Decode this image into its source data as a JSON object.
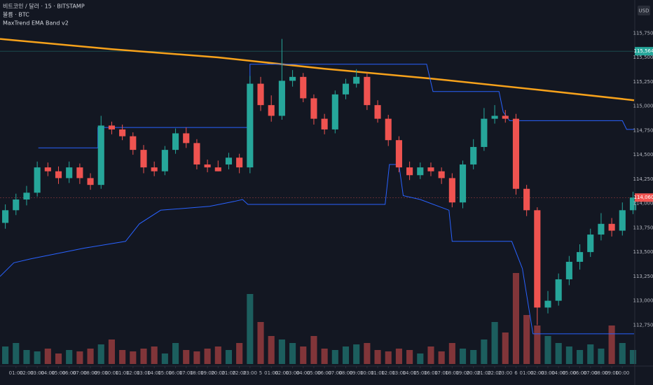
{
  "header": {
    "lines": [
      "비트코인 / 달러 · 15 · BITSTAMP",
      "볼륨 · BTC",
      "MaxTrend EMA Band v2"
    ],
    "currency": "USD"
  },
  "chart_data": {
    "type": "candlestick",
    "colors": {
      "up": "#26a69a",
      "down": "#ef5350"
    },
    "xlim": [
      -0.5,
      59.1
    ],
    "ylim": [
      112350,
      116090
    ],
    "x": [
      0,
      1,
      2,
      3,
      4,
      5,
      6,
      7,
      8,
      9,
      10,
      11,
      12,
      13,
      14,
      15,
      16,
      17,
      18,
      19,
      20,
      21,
      22,
      23,
      24,
      25,
      26,
      27,
      28,
      29,
      30,
      31,
      32,
      33,
      34,
      35,
      36,
      37,
      38,
      39,
      40,
      41,
      42,
      43,
      44,
      45,
      46,
      47,
      48,
      49,
      50,
      51,
      52,
      53,
      54,
      55,
      56,
      57,
      58,
      59
    ],
    "open": [
      113800,
      113930,
      114040,
      114110,
      114370,
      114330,
      114260,
      114370,
      114260,
      114190,
      114800,
      114760,
      114690,
      114550,
      114370,
      114330,
      114550,
      114720,
      114620,
      114400,
      114370,
      114400,
      114470,
      114370,
      115230,
      115010,
      114900,
      115260,
      115300,
      115080,
      114870,
      114760,
      115120,
      115230,
      115300,
      115010,
      114870,
      114650,
      114370,
      114290,
      114370,
      114330,
      114260,
      114010,
      114400,
      114580,
      114870,
      114900,
      114870,
      114150,
      113930,
      112930,
      113000,
      113220,
      113400,
      113500,
      113680,
      113790,
      113720,
      113930
    ],
    "high": [
      113990,
      114100,
      114180,
      114430,
      114420,
      114380,
      114430,
      114410,
      114310,
      114900,
      114840,
      114810,
      114730,
      114600,
      114430,
      114590,
      114770,
      114780,
      114660,
      114450,
      114440,
      114520,
      114510,
      115310,
      115300,
      115110,
      115690,
      115370,
      115340,
      115120,
      114920,
      115160,
      115280,
      115380,
      115340,
      115060,
      114910,
      114690,
      114430,
      114420,
      114420,
      114370,
      114310,
      114440,
      114660,
      114980,
      115010,
      114960,
      114920,
      114190,
      113960,
      113100,
      113280,
      113460,
      113580,
      113740,
      113900,
      113850,
      114010,
      114120
    ],
    "low": [
      113740,
      113880,
      113980,
      114070,
      114280,
      114200,
      114210,
      114200,
      114140,
      114150,
      114710,
      114650,
      114500,
      114310,
      114280,
      114290,
      114510,
      114570,
      114350,
      114320,
      114330,
      114350,
      114310,
      114310,
      114950,
      114840,
      114860,
      115200,
      115040,
      114810,
      114710,
      114720,
      115070,
      115190,
      114960,
      114830,
      114590,
      114320,
      114240,
      114250,
      114280,
      114200,
      113960,
      113950,
      114350,
      114540,
      114820,
      114830,
      114090,
      113870,
      112750,
      112870,
      112950,
      113160,
      113320,
      113450,
      113620,
      113660,
      113670,
      113890
    ],
    "close": [
      113930,
      114040,
      114110,
      114370,
      114330,
      114260,
      114370,
      114260,
      114190,
      114800,
      114760,
      114690,
      114550,
      114370,
      114330,
      114550,
      114720,
      114620,
      114400,
      114370,
      114330,
      114470,
      114370,
      115230,
      115010,
      114900,
      115260,
      115300,
      115080,
      114870,
      114760,
      115120,
      115230,
      115300,
      115010,
      114870,
      114650,
      114370,
      114290,
      114370,
      114330,
      114260,
      114010,
      114400,
      114580,
      114870,
      114900,
      114870,
      114150,
      113930,
      112930,
      113000,
      113220,
      113400,
      113500,
      113680,
      113790,
      113720,
      113930,
      114060
    ],
    "volume": [
      25,
      30,
      20,
      18,
      22,
      15,
      20,
      18,
      22,
      28,
      35,
      20,
      18,
      22,
      25,
      15,
      30,
      20,
      18,
      22,
      25,
      20,
      30,
      100,
      60,
      40,
      35,
      30,
      25,
      40,
      22,
      20,
      25,
      28,
      30,
      20,
      18,
      22,
      20,
      15,
      25,
      18,
      30,
      22,
      20,
      35,
      60,
      45,
      130,
      70,
      55,
      40,
      30,
      25,
      20,
      28,
      22,
      55,
      30,
      20
    ],
    "lines": [
      {
        "color": "#f7a21b",
        "width": 2.5,
        "x": [
          -0.5,
          10,
          20,
          30,
          40,
          50,
          59.1
        ],
        "values": [
          115690,
          115585,
          115500,
          115384,
          115283,
          115169,
          115060
        ]
      },
      {
        "color": "#2962ff",
        "width": 1,
        "x": [
          3.1,
          8.7,
          8.7,
          23,
          23,
          39.6,
          40.2,
          46.4,
          46.8,
          47.4,
          58,
          58.4,
          59.1
        ],
        "values": [
          114570,
          114570,
          114780,
          114780,
          115430,
          115430,
          115150,
          115150,
          114940,
          114850,
          114850,
          114760,
          114760
        ]
      },
      {
        "color": "#2962ff",
        "width": 1,
        "x": [
          -0.5,
          0.8,
          2.4,
          7.4,
          11.3,
          12.6,
          14.6,
          19.2,
          21.5,
          22.3,
          22.8,
          35.7,
          36.1,
          37,
          37.4,
          39,
          41.7,
          42,
          47.6,
          48.6,
          49.6,
          59.1
        ],
        "values": [
          113250,
          113390,
          113430,
          113540,
          113610,
          113790,
          113930,
          113970,
          114020,
          114040,
          113990,
          113990,
          114400,
          114400,
          114080,
          114040,
          113930,
          113610,
          113610,
          113330,
          112660,
          112660
        ]
      }
    ],
    "price_markers": [
      {
        "value": 115564,
        "label": "115,564",
        "color": "#26a69a"
      },
      {
        "value": 114060,
        "label": "114,060",
        "color": "#ef5350"
      }
    ],
    "yticks": [
      {
        "value": 112750,
        "label": "112,750"
      },
      {
        "value": 113000,
        "label": "113,000"
      },
      {
        "value": 113250,
        "label": "113,250"
      },
      {
        "value": 113500,
        "label": "113,500"
      },
      {
        "value": 113750,
        "label": "113,750"
      },
      {
        "value": 114000,
        "label": "114,000"
      },
      {
        "value": 114250,
        "label": "114,250"
      },
      {
        "value": 114500,
        "label": "114,500"
      },
      {
        "value": 114750,
        "label": "114,750"
      },
      {
        "value": 115000,
        "label": "115,000"
      },
      {
        "value": 115250,
        "label": "115,250"
      },
      {
        "value": 115500,
        "label": "115,500"
      },
      {
        "value": 115750,
        "label": "115,750"
      }
    ],
    "xticks": [
      {
        "value": 1,
        "label": "01:00"
      },
      {
        "value": 2,
        "label": "02:00"
      },
      {
        "value": 3,
        "label": "03:00"
      },
      {
        "value": 4,
        "label": "04:00"
      },
      {
        "value": 5,
        "label": "05:00"
      },
      {
        "value": 6,
        "label": "06:00"
      },
      {
        "value": 7,
        "label": "07:00"
      },
      {
        "value": 8,
        "label": "08:00"
      },
      {
        "value": 9,
        "label": "09:00"
      },
      {
        "value": 10,
        "label": "10:00"
      },
      {
        "value": 11,
        "label": "11:00"
      },
      {
        "value": 12,
        "label": "12:00"
      },
      {
        "value": 13,
        "label": "13:00"
      },
      {
        "value": 14,
        "label": "14:00"
      },
      {
        "value": 15,
        "label": "15:00"
      },
      {
        "value": 16,
        "label": "16:00"
      },
      {
        "value": 17,
        "label": "17:00"
      },
      {
        "value": 18,
        "label": "18:00"
      },
      {
        "value": 19,
        "label": "19:00"
      },
      {
        "value": 20,
        "label": "20:00"
      },
      {
        "value": 21,
        "label": "21:00"
      },
      {
        "value": 22,
        "label": "22:00"
      },
      {
        "value": 23,
        "label": "23:00"
      },
      {
        "value": 24,
        "label": "5"
      },
      {
        "value": 25,
        "label": "01:00"
      },
      {
        "value": 26,
        "label": "02:00"
      },
      {
        "value": 27,
        "label": "03:00"
      },
      {
        "value": 28,
        "label": "04:00"
      },
      {
        "value": 29,
        "label": "05:00"
      },
      {
        "value": 30,
        "label": "06:00"
      },
      {
        "value": 31,
        "label": "07:00"
      },
      {
        "value": 32,
        "label": "08:00"
      },
      {
        "value": 33,
        "label": "09:00"
      },
      {
        "value": 34,
        "label": "10:00"
      },
      {
        "value": 35,
        "label": "11:00"
      },
      {
        "value": 36,
        "label": "12:00"
      },
      {
        "value": 37,
        "label": "13:00"
      },
      {
        "value": 38,
        "label": "14:00"
      },
      {
        "value": 39,
        "label": "15:00"
      },
      {
        "value": 40,
        "label": "16:00"
      },
      {
        "value": 41,
        "label": "17:00"
      },
      {
        "value": 42,
        "label": "18:00"
      },
      {
        "value": 43,
        "label": "19:00"
      },
      {
        "value": 44,
        "label": "20:00"
      },
      {
        "value": 45,
        "label": "21:00"
      },
      {
        "value": 46,
        "label": "22:00"
      },
      {
        "value": 47,
        "label": "23:00"
      },
      {
        "value": 48,
        "label": "6"
      },
      {
        "value": 49,
        "label": "01:00"
      },
      {
        "value": 50,
        "label": "02:00"
      },
      {
        "value": 51,
        "label": "03:00"
      },
      {
        "value": 52,
        "label": "04:00"
      },
      {
        "value": 53,
        "label": "05:00"
      },
      {
        "value": 54,
        "label": "06:00"
      },
      {
        "value": 55,
        "label": "07:00"
      },
      {
        "value": 56,
        "label": "08:00"
      },
      {
        "value": 57,
        "label": "09:00"
      },
      {
        "value": 58,
        "label": "10:00"
      }
    ]
  }
}
